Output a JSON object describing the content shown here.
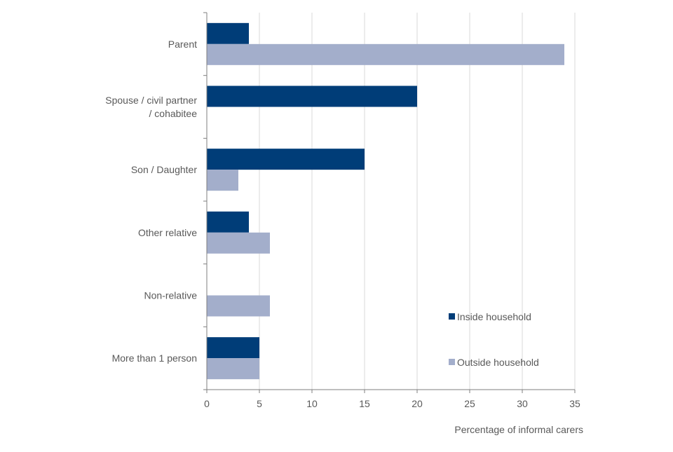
{
  "chart_data": {
    "type": "bar",
    "orientation": "horizontal",
    "title": "",
    "xlabel": "Percentage of informal carers",
    "ylabel": "",
    "xlim": [
      0,
      35
    ],
    "x_ticks": [
      0,
      5,
      10,
      15,
      20,
      25,
      30,
      35
    ],
    "grid": true,
    "legend_position": "bottom-right",
    "categories": [
      [
        "Parent"
      ],
      [
        "Spouse / civil partner",
        "/ cohabitee"
      ],
      [
        "Son / Daughter"
      ],
      [
        "Other relative"
      ],
      [
        "Non-relative"
      ],
      [
        "More than 1 person"
      ]
    ],
    "series": [
      {
        "name": "Inside household",
        "color": "#003d78",
        "values": [
          4,
          20,
          15,
          4,
          0,
          5
        ]
      },
      {
        "name": "Outside household",
        "color": "#a3aecb",
        "values": [
          34,
          0,
          3,
          6,
          6,
          5
        ]
      }
    ]
  }
}
